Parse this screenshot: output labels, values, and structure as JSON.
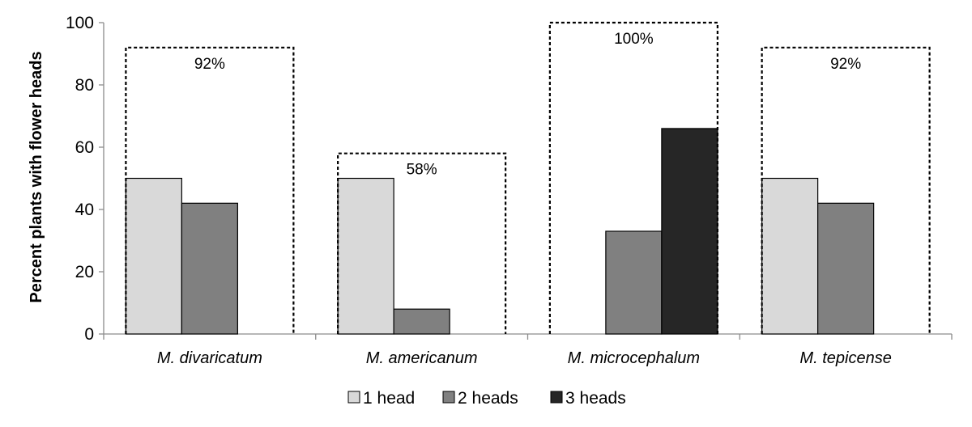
{
  "chart_data": {
    "type": "bar",
    "ylabel": "Percent plants with flower heads",
    "xlabel": "",
    "ylim": [
      0,
      100
    ],
    "yticks": [
      0,
      20,
      40,
      60,
      80,
      100
    ],
    "grid": false,
    "legend_position": "bottom",
    "categories": [
      "M. divaricatum",
      "M. americanum",
      "M. microcephalum",
      "M. tepicense"
    ],
    "series": [
      {
        "name": "1 head",
        "color": "#d9d9d9",
        "values": [
          50,
          50,
          0,
          50
        ]
      },
      {
        "name": "2 heads",
        "color": "#808080",
        "values": [
          42,
          8,
          33,
          42
        ]
      },
      {
        "name": "3 heads",
        "color": "#262626",
        "values": [
          0,
          0,
          66,
          0
        ]
      }
    ],
    "totals": [
      {
        "value": 92,
        "label": "92%"
      },
      {
        "value": 58,
        "label": "58%"
      },
      {
        "value": 100,
        "label": "100%"
      },
      {
        "value": 92,
        "label": "92%"
      }
    ]
  }
}
